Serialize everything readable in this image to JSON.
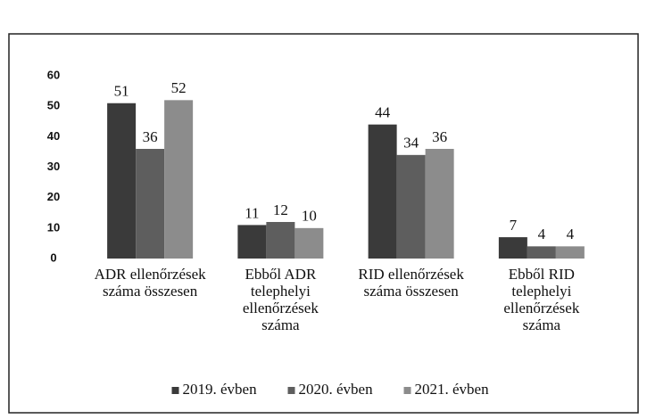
{
  "chart_data": {
    "type": "bar",
    "categories": [
      "ADR ellenőrzések száma összesen",
      "Ebből ADR telephelyi ellenőrzések száma",
      "RID ellenőrzések száma összesen",
      "Ebből RID telephelyi ellenőrzések száma"
    ],
    "series": [
      {
        "name": "2019. évben",
        "color": "#3a3a3a",
        "values": [
          51,
          11,
          44,
          7
        ]
      },
      {
        "name": "2020. évben",
        "color": "#5e5e5e",
        "values": [
          36,
          12,
          34,
          4
        ]
      },
      {
        "name": "2021. évben",
        "color": "#8c8c8c",
        "values": [
          52,
          10,
          36,
          4
        ]
      }
    ],
    "ylim": [
      0,
      60
    ],
    "yticks": [
      0,
      10,
      20,
      30,
      40,
      50,
      60
    ],
    "grid": false,
    "legend": "bottom"
  }
}
